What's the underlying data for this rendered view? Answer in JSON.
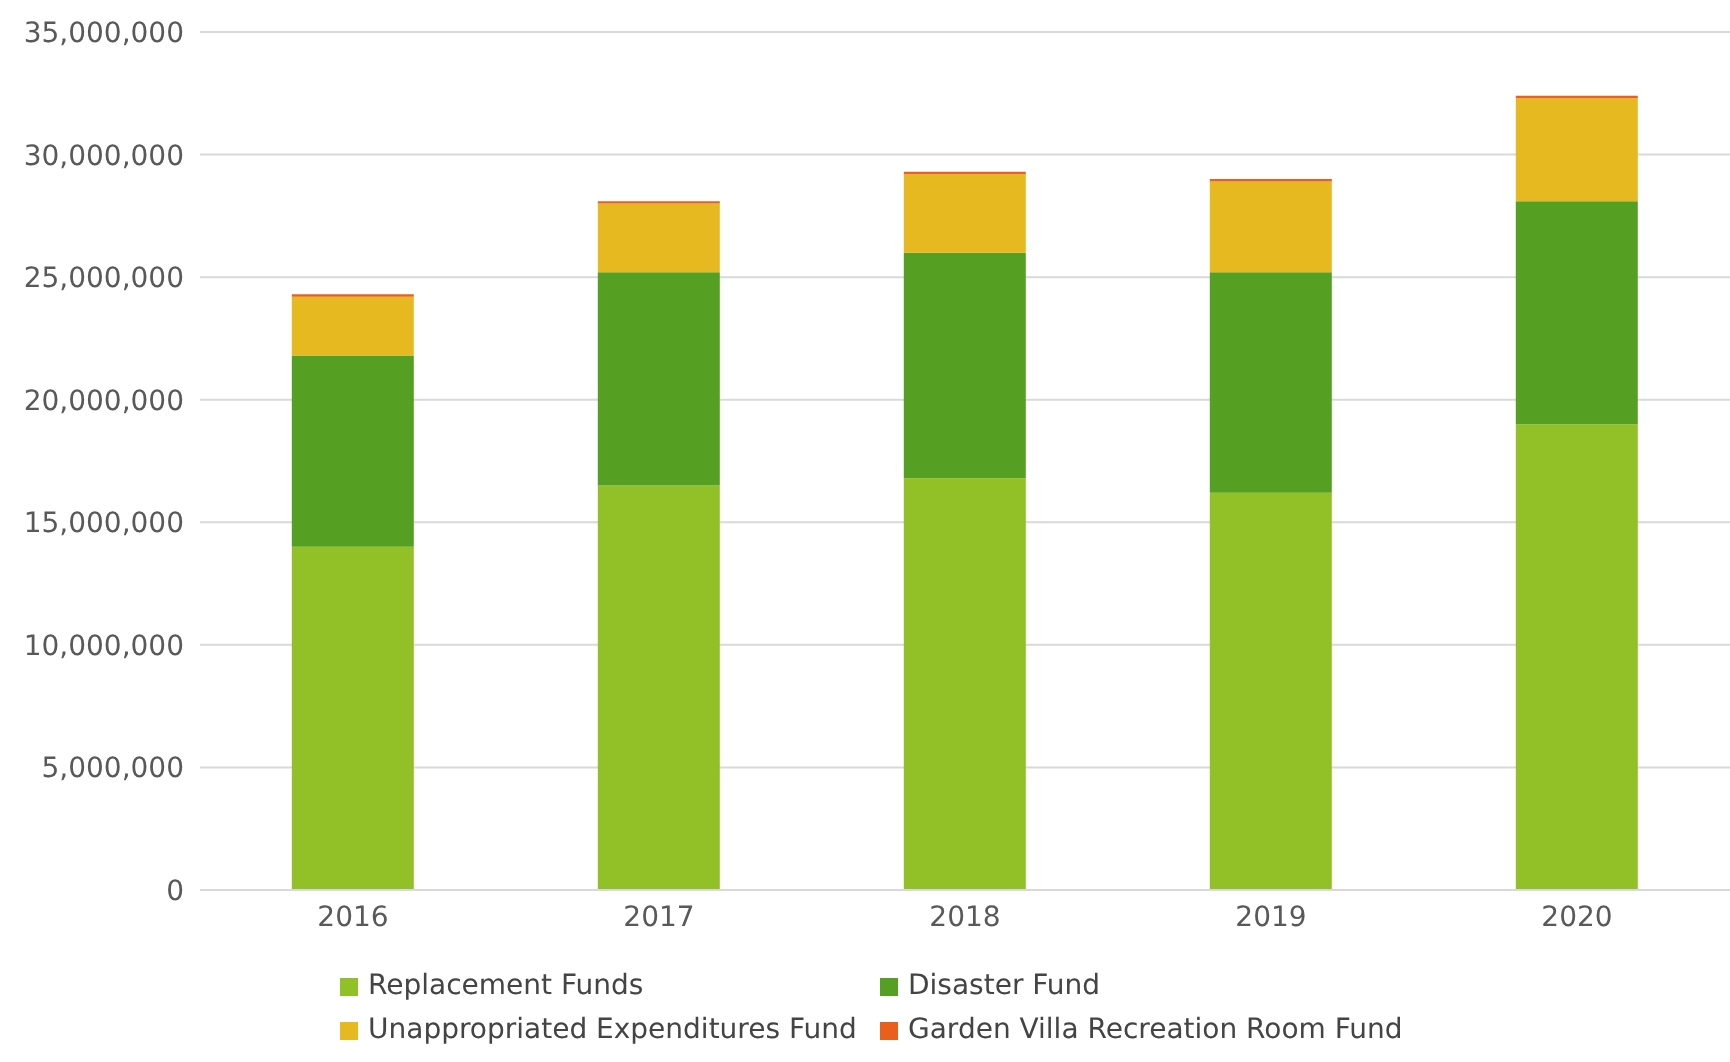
{
  "chart_data": {
    "type": "bar",
    "stacked": true,
    "categories": [
      "2016",
      "2017",
      "2018",
      "2019",
      "2020"
    ],
    "series": [
      {
        "name": "Replacement Funds",
        "color": "#92c027",
        "values": [
          14000000,
          16500000,
          16800000,
          16200000,
          19000000
        ]
      },
      {
        "name": "Disaster Fund",
        "color": "#55a023",
        "values": [
          7800000,
          8700000,
          9200000,
          9000000,
          9100000
        ]
      },
      {
        "name": "Unappropriated Expenditures Fund",
        "color": "#e6b921",
        "values": [
          2400000,
          2800000,
          3200000,
          3700000,
          4200000
        ]
      },
      {
        "name": "Garden Villa Recreation Room Fund",
        "color": "#e8601c",
        "values": [
          100000,
          100000,
          100000,
          100000,
          100000
        ]
      }
    ],
    "ylim": [
      0,
      35000000
    ],
    "yticks": [
      0,
      {
        "value": 5000000,
        "label": "5,000,000"
      },
      {
        "value": 10000000,
        "label": "10,000,000"
      },
      {
        "value": 15000000,
        "label": "15,000,000"
      },
      {
        "value": 20000000,
        "label": "20,000,000"
      },
      {
        "value": 25000000,
        "label": "25,000,000"
      },
      {
        "value": 30000000,
        "label": "30,000,000"
      },
      {
        "value": 35000000,
        "label": "35,000,000"
      }
    ],
    "grid": "y",
    "legend": "bottom"
  }
}
